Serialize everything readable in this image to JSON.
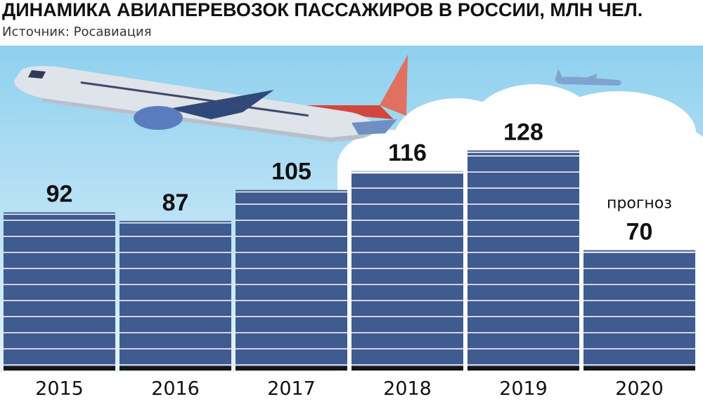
{
  "chart_data": {
    "type": "bar",
    "title": "ДИНАМИКА АВИАПЕРЕВОЗОК ПАССАЖИРОВ В РОССИИ, МЛН ЧЕЛ.",
    "subtitle": "Источник: Росавиация",
    "categories": [
      "2015",
      "2016",
      "2017",
      "2018",
      "2019",
      "2020"
    ],
    "values": [
      92,
      87,
      105,
      116,
      128,
      70
    ],
    "note": "прогноз",
    "color": "#3f5b8f",
    "ylim": [
      0,
      140
    ]
  }
}
